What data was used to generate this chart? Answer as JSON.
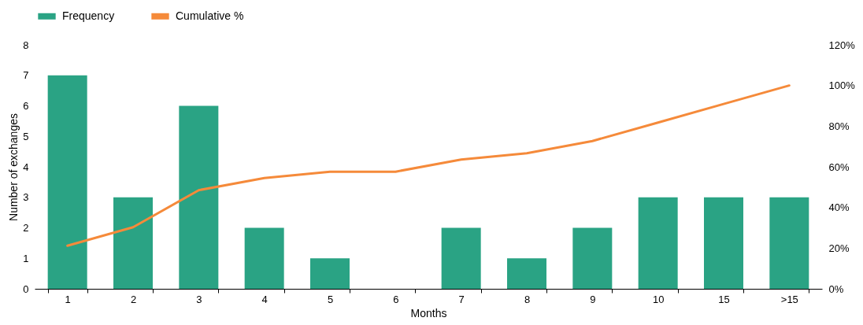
{
  "chart_data": {
    "type": "bar",
    "xlabel": "Months",
    "ylabel": "Number of exchanges",
    "categories": [
      "1",
      "2",
      "3",
      "4",
      "5",
      "6",
      "7",
      "8",
      "9",
      "10",
      "15",
      ">15"
    ],
    "series": [
      {
        "name": "Frequency",
        "color": "#2aa384",
        "values": [
          7,
          3,
          6,
          2,
          1,
          0,
          2,
          1,
          2,
          3,
          3,
          3
        ]
      },
      {
        "name": "Cumulative %",
        "type": "line",
        "axis": "y2",
        "color": "#f58a3a",
        "values": [
          21.2,
          30.3,
          48.5,
          54.5,
          57.6,
          57.6,
          63.6,
          66.7,
          72.7,
          81.8,
          90.9,
          100
        ]
      }
    ],
    "ylim": [
      0,
      8
    ],
    "yticks": [
      0,
      1,
      2,
      3,
      4,
      5,
      6,
      7,
      8
    ],
    "y2lim": [
      0,
      120
    ],
    "y2ticks": [
      {
        "value": 0,
        "label": "0%"
      },
      {
        "value": 20,
        "label": "20%"
      },
      {
        "value": 40,
        "label": "40%"
      },
      {
        "value": 60,
        "label": "60%"
      },
      {
        "value": 80,
        "label": "80%"
      },
      {
        "value": 100,
        "label": "100%"
      },
      {
        "value": 120,
        "label": "120%"
      }
    ],
    "legend": "top left",
    "grid": false
  }
}
